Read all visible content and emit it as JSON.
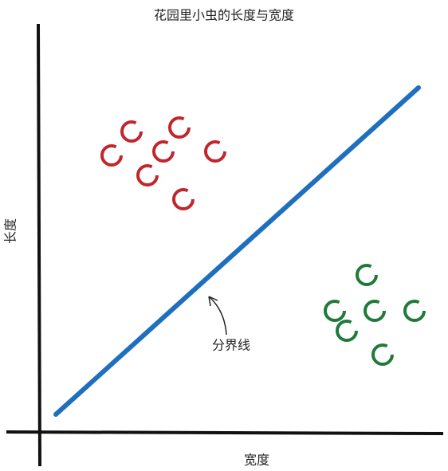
{
  "chart_data": {
    "type": "scatter",
    "title": "花园里小虫的长度与宽度",
    "x_label": "宽度",
    "y_label": "长度",
    "annotation": "分界线",
    "xlim": [
      0,
      10
    ],
    "ylim": [
      0,
      10
    ],
    "series": [
      {
        "color": "#c0262d",
        "x": [
          2.3,
          3.5,
          1.8,
          3.1,
          4.4,
          2.7,
          3.6
        ],
        "values": [
          7.5,
          7.6,
          6.9,
          7.0,
          7.0,
          6.4,
          5.8
        ]
      },
      {
        "color": "#1f7a3a",
        "x": [
          8.2,
          7.4,
          8.4,
          9.4,
          7.7,
          8.6
        ],
        "values": [
          3.9,
          3.0,
          3.0,
          3.0,
          2.5,
          1.9
        ]
      }
    ],
    "dividing_line": {
      "color": "#1f6fbf",
      "x": [
        0.4,
        9.5
      ],
      "values": [
        0.4,
        8.6
      ]
    }
  }
}
